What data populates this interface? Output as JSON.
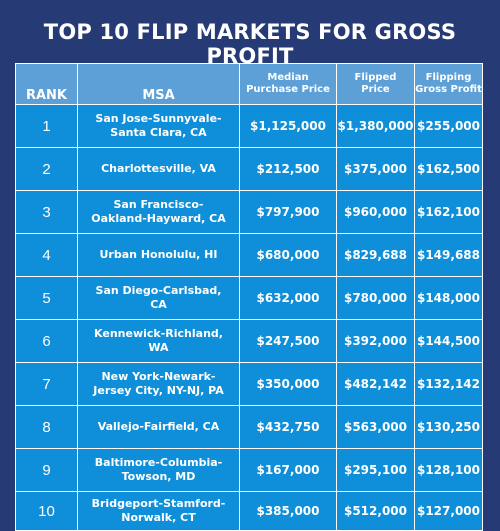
{
  "title": "TOP 10 FLIP MARKETS FOR GROSS PROFIT",
  "headers": {
    "rank": "RANK",
    "msa": "MSA",
    "median_line1": "Median",
    "median_line2": "Purchase Price",
    "flipped_line1": "Flipped",
    "flipped_line2": "Price",
    "gross_line1": "Flipping",
    "gross_line2": "Gross Profit"
  },
  "rows": [
    {
      "rank": "1",
      "msa_line1": "San Jose-Sunnyvale-",
      "msa_line2": "Santa Clara, CA",
      "median": "$1,125,000",
      "flipped": "$1,380,000",
      "gross": "$255,000"
    },
    {
      "rank": "2",
      "msa_line1": "Charlottesville, VA",
      "msa_line2": "",
      "median": "$212,500",
      "flipped": "$375,000",
      "gross": "$162,500"
    },
    {
      "rank": "3",
      "msa_line1": "San Francisco-",
      "msa_line2": "Oakland-Hayward, CA",
      "median": "$797,900",
      "flipped": "$960,000",
      "gross": "$162,100"
    },
    {
      "rank": "4",
      "msa_line1": "Urban Honolulu, HI",
      "msa_line2": "",
      "median": "$680,000",
      "flipped": "$829,688",
      "gross": "$149,688"
    },
    {
      "rank": "5",
      "msa_line1": "San Diego-Carlsbad,",
      "msa_line2": "CA",
      "median": "$632,000",
      "flipped": "$780,000",
      "gross": "$148,000"
    },
    {
      "rank": "6",
      "msa_line1": "Kennewick-Richland,",
      "msa_line2": "WA",
      "median": "$247,500",
      "flipped": "$392,000",
      "gross": "$144,500"
    },
    {
      "rank": "7",
      "msa_line1": "New York-Newark-",
      "msa_line2": "Jersey City, NY-NJ, PA",
      "median": "$350,000",
      "flipped": "$482,142",
      "gross": "$132,142"
    },
    {
      "rank": "8",
      "msa_line1": "Vallejo-Fairfield, CA",
      "msa_line2": "",
      "median": "$432,750",
      "flipped": "$563,000",
      "gross": "$130,250"
    },
    {
      "rank": "9",
      "msa_line1": "Baltimore-Columbia-",
      "msa_line2": "Towson, MD",
      "median": "$167,000",
      "flipped": "$295,100",
      "gross": "$128,100"
    },
    {
      "rank": "10",
      "msa_line1": "Bridgeport-Stamford-",
      "msa_line2": "Norwalk, CT",
      "median": "$385,000",
      "flipped": "$512,000",
      "gross": "$127,000"
    }
  ]
}
